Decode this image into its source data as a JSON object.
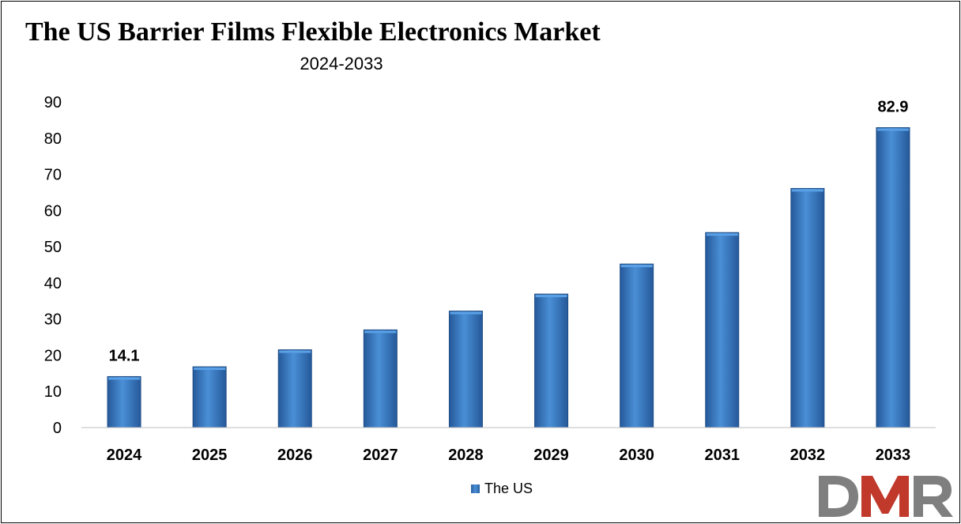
{
  "chart_data": {
    "type": "bar",
    "title": "The US Barrier Films Flexible Electronics Market",
    "subtitle": "2024-2033",
    "categories": [
      "2024",
      "2025",
      "2026",
      "2027",
      "2028",
      "2029",
      "2030",
      "2031",
      "2032",
      "2033"
    ],
    "series": [
      {
        "name": "The US",
        "values": [
          14.1,
          16.8,
          21.5,
          27.0,
          32.2,
          36.9,
          45.2,
          53.9,
          66.1,
          82.9
        ]
      }
    ],
    "data_labels": [
      {
        "category": "2024",
        "text": "14.1"
      },
      {
        "category": "2033",
        "text": "82.9"
      }
    ],
    "ylim": [
      0,
      90
    ],
    "yticks": [
      0,
      10,
      20,
      30,
      40,
      50,
      60,
      70,
      80,
      90
    ],
    "xlabel": "",
    "ylabel": "",
    "grid": false,
    "legend_position": "bottom",
    "bar_color": "#3a7cc4"
  },
  "logo": {
    "text": "DMR",
    "colors": [
      "#7f7f7f",
      "#c0392b"
    ]
  }
}
